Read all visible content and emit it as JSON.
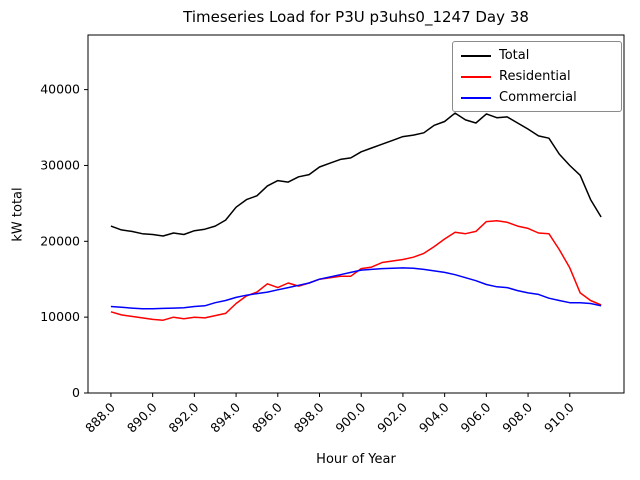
{
  "chart_data": {
    "type": "line",
    "title": "Timeseries Load for P3U p3uhs0_1247  Day 38",
    "xlabel": "Hour of Year",
    "ylabel": "kW total",
    "grid": false,
    "legend_position": "upper right",
    "xlim": [
      886.9,
      912.6
    ],
    "ylim": [
      0,
      47200
    ],
    "xticks": {
      "values": [
        888,
        890,
        892,
        894,
        896,
        898,
        900,
        902,
        904,
        906,
        908,
        910
      ],
      "labels": [
        "888.0",
        "890.0",
        "892.0",
        "894.0",
        "896.0",
        "898.0",
        "900.0",
        "902.0",
        "904.0",
        "906.0",
        "908.0",
        "910.0"
      ]
    },
    "yticks": {
      "values": [
        0,
        10000,
        20000,
        30000,
        40000
      ],
      "labels": [
        "0",
        "10000",
        "20000",
        "30000",
        "40000"
      ]
    },
    "x": [
      888.0,
      888.5,
      889.0,
      889.5,
      890.0,
      890.5,
      891.0,
      891.5,
      892.0,
      892.5,
      893.0,
      893.5,
      894.0,
      894.5,
      895.0,
      895.5,
      896.0,
      896.5,
      897.0,
      897.5,
      898.0,
      898.5,
      899.0,
      899.5,
      900.0,
      900.5,
      901.0,
      901.5,
      902.0,
      902.5,
      903.0,
      903.5,
      904.0,
      904.5,
      905.0,
      905.5,
      906.0,
      906.5,
      907.0,
      907.5,
      908.0,
      908.5,
      909.0,
      909.5,
      910.0,
      910.5,
      911.0,
      911.5
    ],
    "series": [
      {
        "name": "Total",
        "color": "#000000",
        "values": [
          22000,
          21500,
          21300,
          21000,
          20900,
          20700,
          21100,
          20900,
          21400,
          21600,
          22000,
          22800,
          24500,
          25500,
          26000,
          27300,
          28000,
          27800,
          28500,
          28800,
          29800,
          30300,
          30800,
          31000,
          31800,
          32300,
          32800,
          33300,
          33800,
          34000,
          34300,
          35300,
          35800,
          36900,
          36000,
          35600,
          36800,
          36300,
          36400,
          35600,
          34800,
          33900,
          33600,
          31500,
          30000,
          28700,
          25500,
          23200
        ]
      },
      {
        "name": "Residential",
        "color": "#ff0000",
        "values": [
          10700,
          10300,
          10100,
          9900,
          9700,
          9600,
          10000,
          9800,
          10000,
          9900,
          10200,
          10500,
          11800,
          12800,
          13300,
          14400,
          13900,
          14500,
          14100,
          14500,
          15000,
          15200,
          15400,
          15400,
          16400,
          16600,
          17200,
          17400,
          17600,
          17900,
          18400,
          19300,
          20300,
          21200,
          21000,
          21300,
          22600,
          22700,
          22500,
          22000,
          21700,
          21100,
          21000,
          18900,
          16500,
          13200,
          12200,
          11600
        ]
      },
      {
        "name": "Commercial",
        "color": "#0000ff",
        "values": [
          11400,
          11300,
          11200,
          11100,
          11100,
          11150,
          11200,
          11250,
          11400,
          11500,
          11900,
          12200,
          12600,
          12900,
          13100,
          13300,
          13600,
          13900,
          14200,
          14500,
          15000,
          15300,
          15600,
          15900,
          16200,
          16300,
          16400,
          16450,
          16500,
          16450,
          16300,
          16100,
          15900,
          15600,
          15200,
          14800,
          14300,
          14000,
          13900,
          13500,
          13200,
          13000,
          12500,
          12200,
          11900,
          11900,
          11800,
          11500
        ]
      }
    ]
  }
}
